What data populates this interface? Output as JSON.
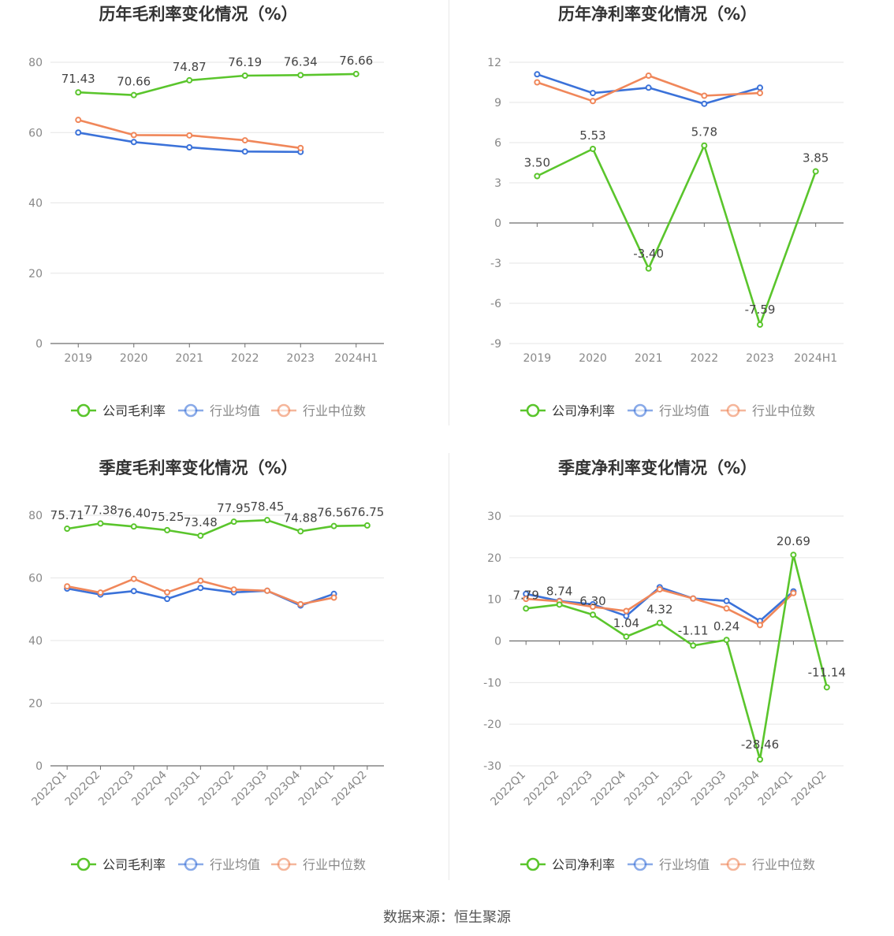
{
  "footer": {
    "source": "数据来源：恒生聚源"
  },
  "colors": {
    "company": "#5ac52c",
    "avg": "#3b72d9",
    "median": "#f0875a",
    "grid": "#e6e6e6",
    "axis": "#6e6e6e"
  },
  "chart_data": [
    {
      "id": "annual-gross",
      "type": "line",
      "title": "历年毛利率变化情况（%）",
      "categories": [
        "2019",
        "2020",
        "2021",
        "2022",
        "2023",
        "2024H1"
      ],
      "ylim": [
        0,
        80
      ],
      "yticks": [
        0,
        20,
        40,
        60,
        80
      ],
      "series": [
        {
          "name": "公司毛利率",
          "key": "company",
          "values": [
            71.43,
            70.66,
            74.87,
            76.19,
            76.34,
            76.66
          ],
          "labels": true
        },
        {
          "name": "行业均值",
          "key": "avg",
          "values": [
            60.0,
            57.3,
            55.8,
            54.6,
            54.5,
            null
          ]
        },
        {
          "name": "行业中位数",
          "key": "median",
          "values": [
            63.6,
            59.3,
            59.2,
            57.8,
            55.6,
            null
          ]
        }
      ],
      "rotate_xlabels": false
    },
    {
      "id": "annual-net",
      "type": "line",
      "title": "历年净利率变化情况（%）",
      "categories": [
        "2019",
        "2020",
        "2021",
        "2022",
        "2023",
        "2024H1"
      ],
      "ylim": [
        -9,
        12
      ],
      "yticks": [
        -9,
        -6,
        -3,
        0,
        3,
        6,
        9,
        12
      ],
      "series": [
        {
          "name": "公司净利率",
          "key": "company",
          "values": [
            3.5,
            5.53,
            -3.4,
            5.78,
            -7.59,
            3.85
          ],
          "labels": true
        },
        {
          "name": "行业均值",
          "key": "avg",
          "values": [
            11.1,
            9.7,
            10.1,
            8.9,
            10.1,
            null
          ]
        },
        {
          "name": "行业中位数",
          "key": "median",
          "values": [
            10.5,
            9.1,
            11.0,
            9.5,
            9.7,
            null
          ]
        }
      ],
      "rotate_xlabels": false
    },
    {
      "id": "quarterly-gross",
      "type": "line",
      "title": "季度毛利率变化情况（%）",
      "categories": [
        "2022Q1",
        "2022Q2",
        "2022Q3",
        "2022Q4",
        "2023Q1",
        "2023Q2",
        "2023Q3",
        "2023Q4",
        "2024Q1",
        "2024Q2"
      ],
      "ylim": [
        0,
        80
      ],
      "yticks": [
        0,
        20,
        40,
        60,
        80
      ],
      "series": [
        {
          "name": "公司毛利率",
          "key": "company",
          "values": [
            75.71,
            77.38,
            76.4,
            75.25,
            73.48,
            77.95,
            78.45,
            74.88,
            76.56,
            76.75
          ],
          "labels": true
        },
        {
          "name": "行业均值",
          "key": "avg",
          "values": [
            56.6,
            54.7,
            55.8,
            53.3,
            56.8,
            55.4,
            55.9,
            51.2,
            54.9,
            null
          ]
        },
        {
          "name": "行业中位数",
          "key": "median",
          "values": [
            57.3,
            55.3,
            59.7,
            55.4,
            59.1,
            56.3,
            55.9,
            51.6,
            53.7,
            null
          ]
        }
      ],
      "rotate_xlabels": true
    },
    {
      "id": "quarterly-net",
      "type": "line",
      "title": "季度净利率变化情况（%）",
      "categories": [
        "2022Q1",
        "2022Q2",
        "2022Q3",
        "2022Q4",
        "2023Q1",
        "2023Q2",
        "2023Q3",
        "2023Q4",
        "2024Q1",
        "2024Q2"
      ],
      "ylim": [
        -30,
        30
      ],
      "yticks": [
        -30,
        -20,
        -10,
        0,
        10,
        20,
        30
      ],
      "series": [
        {
          "name": "公司净利率",
          "key": "company",
          "values": [
            7.79,
            8.74,
            6.3,
            1.04,
            4.32,
            -1.11,
            0.24,
            -28.46,
            20.69,
            -11.14
          ],
          "labels": true
        },
        {
          "name": "行业均值",
          "key": "avg",
          "values": [
            11.3,
            9.6,
            8.8,
            6.0,
            12.9,
            10.2,
            9.6,
            4.8,
            11.9,
            null
          ]
        },
        {
          "name": "行业中位数",
          "key": "median",
          "values": [
            10.1,
            9.5,
            8.2,
            7.2,
            12.4,
            10.2,
            7.8,
            3.8,
            11.5,
            null
          ]
        }
      ],
      "rotate_xlabels": true
    }
  ]
}
